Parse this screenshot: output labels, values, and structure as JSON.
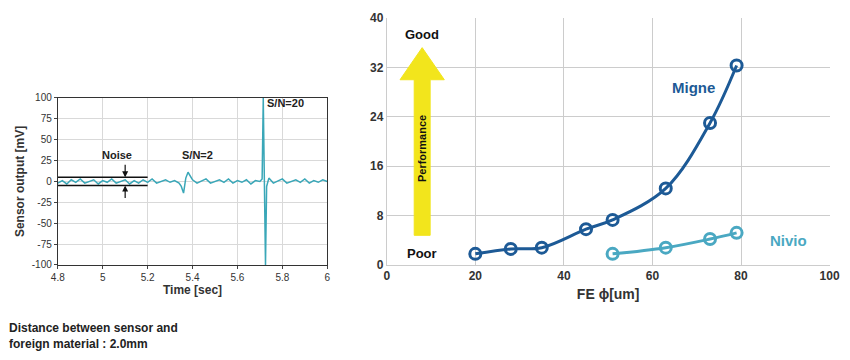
{
  "chart_data": [
    {
      "type": "line",
      "x_label": "Time [sec]",
      "y_label": "Sensor output [mV]",
      "x": [
        4.8,
        4.82,
        4.84,
        4.86,
        4.88,
        4.9,
        4.92,
        4.94,
        4.96,
        4.98,
        5.0,
        5.02,
        5.04,
        5.06,
        5.08,
        5.1,
        5.12,
        5.14,
        5.16,
        5.18,
        5.2,
        5.22,
        5.24,
        5.26,
        5.28,
        5.3,
        5.32,
        5.34,
        5.35,
        5.36,
        5.37,
        5.38,
        5.4,
        5.42,
        5.44,
        5.46,
        5.48,
        5.5,
        5.52,
        5.54,
        5.56,
        5.58,
        5.6,
        5.62,
        5.64,
        5.66,
        5.68,
        5.7,
        5.71,
        5.715,
        5.72,
        5.725,
        5.73,
        5.74,
        5.76,
        5.78,
        5.8,
        5.82,
        5.84,
        5.86,
        5.88,
        5.9,
        5.92,
        5.94,
        5.96,
        5.98,
        6.0
      ],
      "values": [
        -2,
        1,
        -3,
        2,
        -1,
        3,
        -2,
        0,
        2,
        -3,
        1,
        -1,
        3,
        -2,
        0,
        2,
        -3,
        1,
        -2,
        2,
        -1,
        3,
        -2,
        0,
        2,
        -1,
        1,
        -2,
        -6,
        -14,
        4,
        11,
        2,
        -2,
        1,
        3,
        -2,
        0,
        2,
        -1,
        3,
        -2,
        1,
        -1,
        2,
        -3,
        1,
        0,
        3,
        100,
        2,
        -100,
        -6,
        4,
        -2,
        1,
        3,
        -2,
        0,
        2,
        -1,
        3,
        -2,
        1,
        -1,
        2,
        0
      ],
      "color": "#3aa7b8",
      "xlim": [
        4.8,
        6
      ],
      "xticks": [
        4.8,
        5,
        5.2,
        5.4,
        5.6,
        5.8,
        6
      ],
      "ylim": [
        -100,
        100
      ],
      "yticks": [
        -100,
        -75,
        -50,
        -25,
        0,
        25,
        50,
        75,
        100
      ],
      "grid": true,
      "noise_band": {
        "x": [
          4.8,
          5.2
        ],
        "y": [
          -5,
          5
        ]
      },
      "annotations": [
        "Noise",
        "S/N=2",
        "S/N=20"
      ],
      "caption": [
        "Distance between sensor and",
        "foreign material : 2.0mm"
      ]
    },
    {
      "type": "line",
      "x_label": "FE ϕ[um]",
      "series": [
        {
          "name": "Migne",
          "color": "#1d5a96",
          "marker": "circle-open",
          "line_style": "smooth",
          "x": [
            20,
            28,
            35,
            45,
            51,
            63,
            73,
            79
          ],
          "values": [
            1.8,
            2.6,
            2.8,
            5.8,
            7.3,
            12.4,
            23,
            32.3
          ]
        },
        {
          "name": "Nivio",
          "color": "#4aa8c2",
          "marker": "circle-open",
          "line_style": "smooth",
          "x": [
            51,
            63,
            73,
            79
          ],
          "values": [
            1.8,
            2.8,
            4.2,
            5.2
          ]
        }
      ],
      "xlim": [
        0,
        100
      ],
      "xticks": [
        0,
        20,
        40,
        60,
        80,
        100
      ],
      "ylim": [
        0,
        40
      ],
      "yticks": [
        0,
        8,
        16,
        24,
        32,
        40
      ],
      "grid": true,
      "annotations": [
        "Good",
        "Poor",
        "Performance"
      ]
    }
  ]
}
